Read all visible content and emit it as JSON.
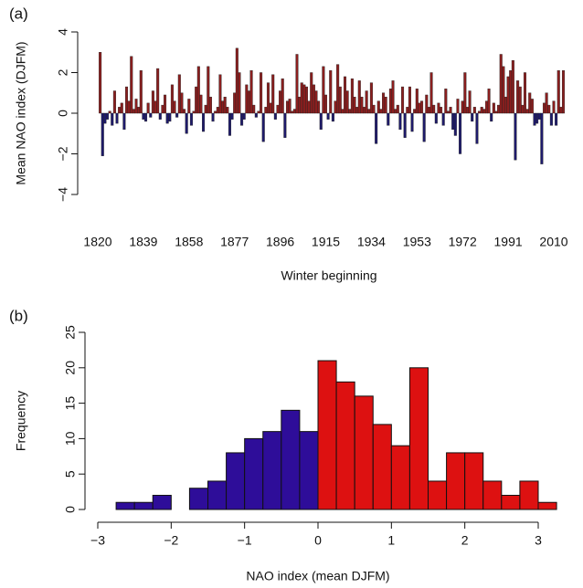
{
  "chart_data": [
    {
      "type": "bar",
      "panel_label": "(a)",
      "ylabel": "Mean NAO index (DJFM)",
      "xlabel": "Winter beginning",
      "x": [
        1821,
        1822,
        1823,
        1824,
        1825,
        1826,
        1827,
        1828,
        1829,
        1830,
        1831,
        1832,
        1833,
        1834,
        1835,
        1836,
        1837,
        1838,
        1839,
        1840,
        1841,
        1842,
        1843,
        1844,
        1845,
        1846,
        1847,
        1848,
        1849,
        1850,
        1851,
        1852,
        1853,
        1854,
        1855,
        1856,
        1857,
        1858,
        1859,
        1860,
        1861,
        1862,
        1863,
        1864,
        1865,
        1866,
        1867,
        1868,
        1869,
        1870,
        1871,
        1872,
        1873,
        1874,
        1875,
        1876,
        1877,
        1878,
        1879,
        1880,
        1881,
        1882,
        1883,
        1884,
        1885,
        1886,
        1887,
        1888,
        1889,
        1890,
        1891,
        1892,
        1893,
        1894,
        1895,
        1896,
        1897,
        1898,
        1899,
        1900,
        1901,
        1902,
        1903,
        1904,
        1905,
        1906,
        1907,
        1908,
        1909,
        1910,
        1911,
        1912,
        1913,
        1914,
        1915,
        1916,
        1917,
        1918,
        1919,
        1920,
        1921,
        1922,
        1923,
        1924,
        1925,
        1926,
        1927,
        1928,
        1929,
        1930,
        1931,
        1932,
        1933,
        1934,
        1935,
        1936,
        1937,
        1938,
        1939,
        1940,
        1941,
        1942,
        1943,
        1944,
        1945,
        1946,
        1947,
        1948,
        1949,
        1950,
        1951,
        1952,
        1953,
        1954,
        1955,
        1956,
        1957,
        1958,
        1959,
        1960,
        1961,
        1962,
        1963,
        1964,
        1965,
        1966,
        1967,
        1968,
        1969,
        1970,
        1971,
        1972,
        1973,
        1974,
        1975,
        1976,
        1977,
        1978,
        1979,
        1980,
        1981,
        1982,
        1983,
        1984,
        1985,
        1986,
        1987,
        1988,
        1989,
        1990,
        1991,
        1992,
        1993,
        1994,
        1995,
        1996,
        1997,
        1998,
        1999,
        2000,
        2001,
        2002,
        2003,
        2004,
        2005,
        2006,
        2007,
        2008,
        2009,
        2010,
        2011,
        2012,
        2013,
        2014
      ],
      "values": [
        3.0,
        -2.1,
        -0.5,
        -0.3,
        0.1,
        -0.6,
        1.1,
        -0.5,
        0.3,
        0.5,
        -0.8,
        1.3,
        0.6,
        2.8,
        0.2,
        0.7,
        0.3,
        2.1,
        -0.3,
        -0.4,
        0.5,
        -0.2,
        1.1,
        0.6,
        2.2,
        -0.3,
        0.4,
        0.9,
        -0.5,
        -0.4,
        1.4,
        0.6,
        -0.2,
        1.9,
        1.0,
        0.2,
        -1.0,
        0.7,
        -0.6,
        0.1,
        1.3,
        2.3,
        0.9,
        -0.9,
        0.4,
        2.3,
        0.8,
        -0.4,
        0.1,
        0.3,
        1.9,
        0.6,
        0.8,
        0.3,
        -1.1,
        -0.3,
        1.0,
        3.2,
        2.0,
        -0.6,
        -0.3,
        1.4,
        1.1,
        2.1,
        0.4,
        -0.2,
        0.1,
        2.0,
        -1.4,
        0.3,
        1.5,
        0.5,
        1.9,
        -0.3,
        0.4,
        1.1,
        1.7,
        -1.2,
        0.6,
        0.7,
        0.1,
        0.2,
        2.9,
        0.8,
        1.5,
        1.4,
        1.3,
        0.6,
        2.0,
        1.4,
        1.1,
        0.6,
        -0.8,
        2.3,
        0.9,
        -0.3,
        2.1,
        -0.4,
        0.6,
        2.4,
        1.3,
        0.2,
        1.8,
        1.1,
        0.2,
        1.7,
        0.8,
        0.3,
        1.6,
        0.8,
        0.3,
        1.1,
        0.2,
        1.5,
        0.4,
        -1.5,
        0.6,
        0.2,
        1.0,
        0.8,
        -0.6,
        1.2,
        1.6,
        0.2,
        0.4,
        -0.8,
        1.3,
        -1.2,
        0.3,
        1.3,
        -0.9,
        0.2,
        1.2,
        0.5,
        0.6,
        -1.4,
        0.9,
        0.3,
        2.0,
        0.4,
        -0.5,
        0.5,
        0.3,
        -0.6,
        1.2,
        0.1,
        0.3,
        -0.8,
        -1.1,
        0.7,
        -2.0,
        0.6,
        2.0,
        0.3,
        1.1,
        -0.4,
        0.3,
        -1.5,
        0.1,
        0.3,
        0.2,
        0.6,
        1.2,
        -0.4,
        0.5,
        0.1,
        0.4,
        2.9,
        2.3,
        0.8,
        1.8,
        2.1,
        2.6,
        -2.3,
        1.6,
        1.3,
        0.4,
        2.0,
        0.2,
        1.0,
        0.7,
        -0.6,
        -0.5,
        -0.3,
        -2.5,
        0.5,
        1.0,
        0.4,
        -0.6,
        0.6,
        -0.6,
        2.1,
        0.3,
        2.1
      ],
      "positive_color": "#8b1e1e",
      "negative_color": "#1e1a6b",
      "xlim": [
        1817,
        2019
      ],
      "xticks": [
        1820,
        1839,
        1858,
        1877,
        1896,
        1915,
        1934,
        1953,
        1972,
        1991,
        2010
      ],
      "ylim": [
        -4,
        4
      ],
      "yticks": [
        {
          "value": -4,
          "label": "−4"
        },
        {
          "value": -2,
          "label": "−2"
        },
        0,
        2,
        4
      ]
    },
    {
      "type": "histogram",
      "panel_label": "(b)",
      "ylabel": "Frequency",
      "xlabel": "NAO index (mean DJFM)",
      "bins": [
        -2.75,
        -2.5,
        -2.25,
        -2,
        -1.75,
        -1.5,
        -1.25,
        -1,
        -0.75,
        -0.5,
        -0.25,
        0,
        0.25,
        0.5,
        0.75,
        1,
        1.25,
        1.5,
        1.75,
        2,
        2.25,
        2.5,
        2.75,
        3,
        3.25
      ],
      "values": [
        1,
        1,
        2,
        0,
        3,
        4,
        8,
        10,
        11,
        14,
        11,
        21,
        18,
        16,
        12,
        9,
        20,
        4,
        8,
        8,
        4,
        2,
        4,
        1
      ],
      "positive_color": "#dd1111",
      "negative_color": "#2e0d99",
      "xlim": [
        -3,
        3
      ],
      "xticks": [
        {
          "value": -3,
          "label": "−3"
        },
        {
          "value": -2,
          "label": "−2"
        },
        {
          "value": -1,
          "label": "−1"
        },
        0,
        1,
        2,
        3
      ],
      "ylim": [
        0,
        25
      ],
      "yticks": [
        0,
        5,
        10,
        15,
        20,
        25
      ]
    }
  ]
}
